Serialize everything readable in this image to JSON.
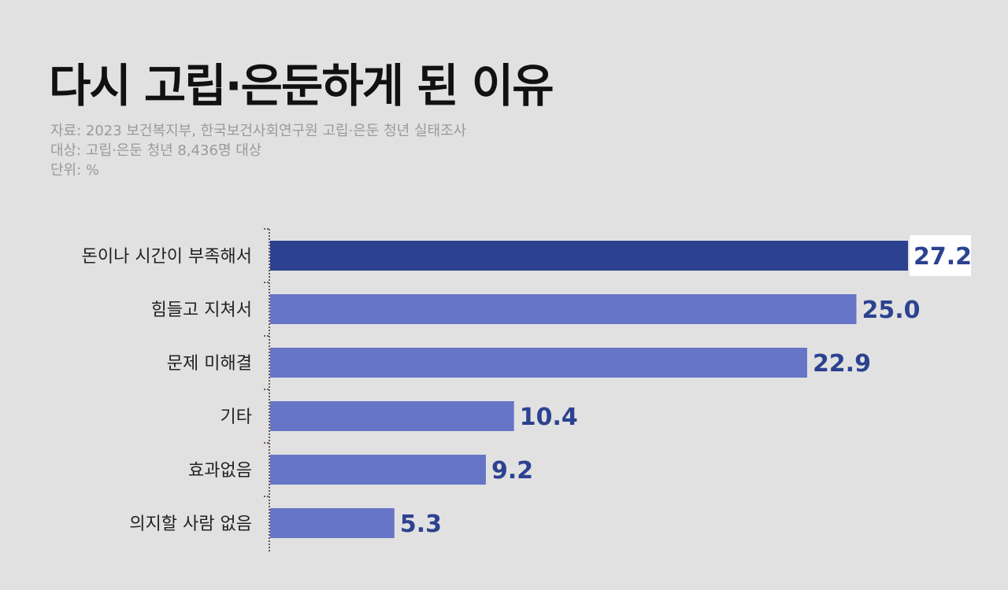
{
  "chart_data": {
    "type": "bar",
    "orientation": "horizontal",
    "title": "다시 고립·은둔하게 된 이유",
    "notes": [
      "자료: 2023 보건복지부, 한국보건사회연구원 고립·은둔 청년 실태조사",
      "대상: 고립·은둔 청년 8,436명 대상",
      "단위: %"
    ],
    "categories": [
      "돈이나 시간이 부족해서",
      "힘들고 지쳐서",
      "문제 미해결",
      "기타",
      "효과없음",
      "의지할 사람 없음"
    ],
    "values": [
      27.2,
      25.0,
      22.9,
      10.4,
      9.2,
      5.3
    ],
    "value_labels": [
      "27.2",
      "25.0",
      "22.9",
      "10.4",
      "9.2",
      "5.3"
    ],
    "highlight_index": 0,
    "xlim": [
      0,
      27.2
    ],
    "grid": false,
    "colors": {
      "highlight": "#2c4290",
      "bar": "#6675c6",
      "label": "#2c4290",
      "background": "#e1e1e1"
    }
  }
}
